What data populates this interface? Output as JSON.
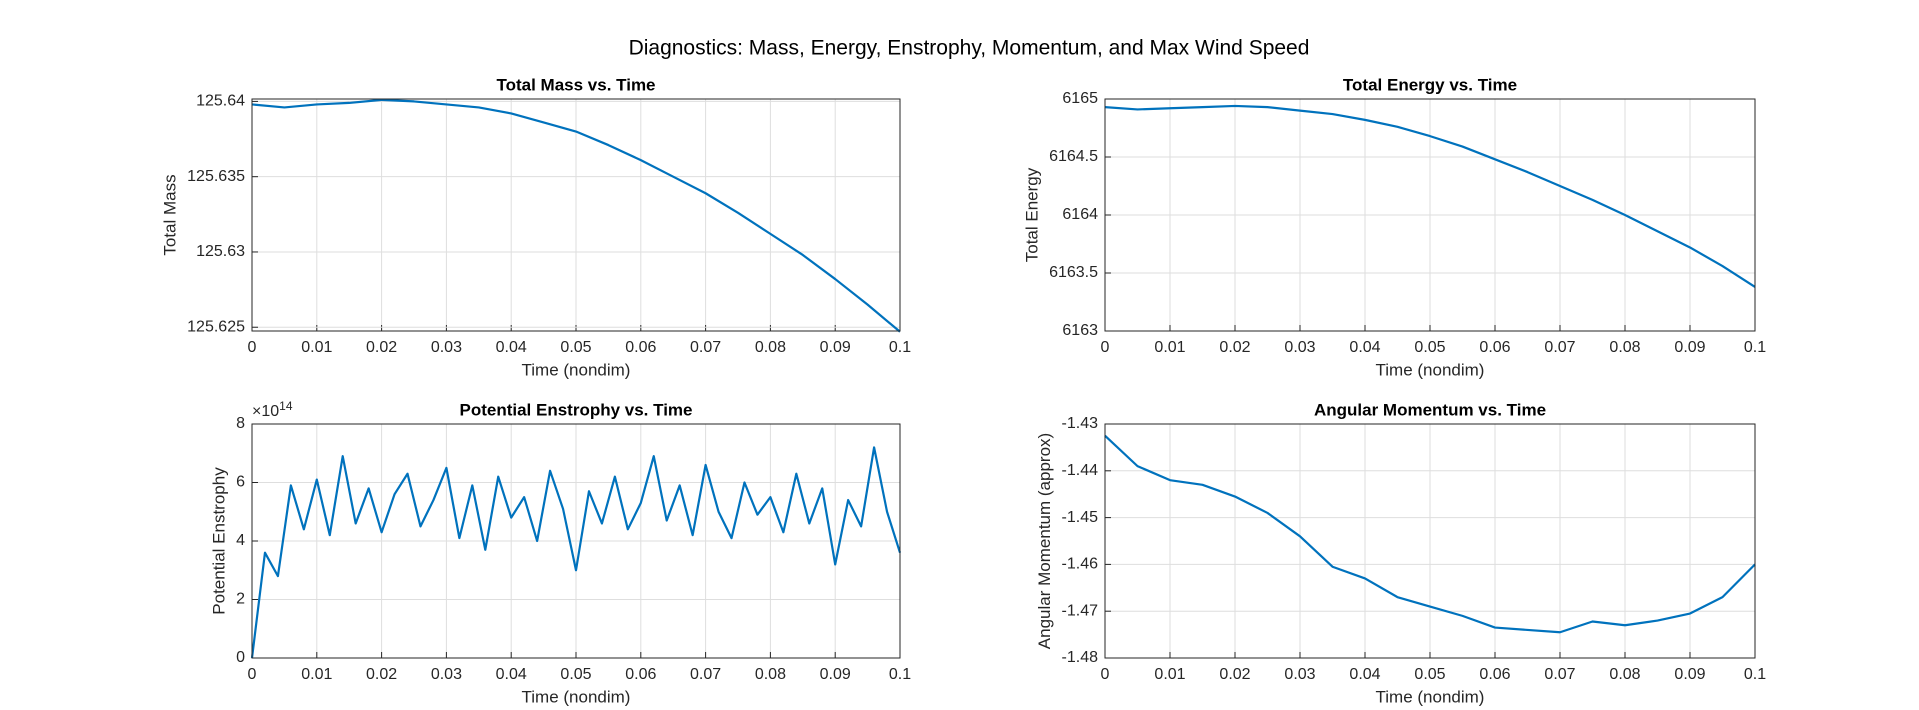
{
  "figure_title": "Diagnostics: Mass, Energy, Enstrophy, Momentum, and Max Wind Speed",
  "chart_data": [
    {
      "type": "line",
      "title": "Total Mass vs. Time",
      "xlabel": "Time (nondim)",
      "ylabel": "Total Mass",
      "color": "#0072bd",
      "grid": true,
      "x": [
        0,
        0.005,
        0.01,
        0.015,
        0.02,
        0.025,
        0.03,
        0.035,
        0.04,
        0.045,
        0.05,
        0.055,
        0.06,
        0.065,
        0.07,
        0.075,
        0.08,
        0.085,
        0.09,
        0.095,
        0.1
      ],
      "values": [
        125.6398,
        125.6396,
        125.6398,
        125.6399,
        125.6401,
        125.64,
        125.6398,
        125.6396,
        125.6392,
        125.6386,
        125.638,
        125.6371,
        125.6361,
        125.635,
        125.6339,
        125.6326,
        125.6312,
        125.6298,
        125.6282,
        125.6265,
        125.6247
      ],
      "xlim": [
        0,
        0.1
      ],
      "xticks": [
        0,
        0.01,
        0.02,
        0.03,
        0.04,
        0.05,
        0.06,
        0.07,
        0.08,
        0.09,
        0.1
      ],
      "ylim": [
        125.62475,
        125.64016
      ],
      "yticks": [
        125.625,
        125.63,
        125.635,
        125.64
      ]
    },
    {
      "type": "line",
      "title": "Total Energy vs. Time",
      "xlabel": "Time (nondim)",
      "ylabel": "Total Energy",
      "color": "#0072bd",
      "grid": true,
      "x": [
        0,
        0.005,
        0.01,
        0.015,
        0.02,
        0.025,
        0.03,
        0.035,
        0.04,
        0.045,
        0.05,
        0.055,
        0.06,
        0.065,
        0.07,
        0.075,
        0.08,
        0.085,
        0.09,
        0.095,
        0.1
      ],
      "values": [
        6164.93,
        6164.91,
        6164.92,
        6164.93,
        6164.94,
        6164.93,
        6164.9,
        6164.87,
        6164.82,
        6164.76,
        6164.68,
        6164.59,
        6164.48,
        6164.37,
        6164.25,
        6164.13,
        6164.0,
        6163.86,
        6163.72,
        6163.56,
        6163.38
      ],
      "xlim": [
        0,
        0.1
      ],
      "xticks": [
        0,
        0.01,
        0.02,
        0.03,
        0.04,
        0.05,
        0.06,
        0.07,
        0.08,
        0.09,
        0.1
      ],
      "ylim": [
        6163,
        6165
      ],
      "yticks": [
        6163,
        6163.5,
        6164,
        6164.5,
        6165
      ]
    },
    {
      "type": "line",
      "title": "Potential Enstrophy vs. Time",
      "xlabel": "Time (nondim)",
      "ylabel": "Potential Enstrophy",
      "color": "#0072bd",
      "grid": true,
      "y_scale_base": "×10",
      "y_scale_power": "14",
      "x": [
        0,
        0.002,
        0.004,
        0.006,
        0.008,
        0.01,
        0.012,
        0.014,
        0.016,
        0.018,
        0.02,
        0.022,
        0.024,
        0.026,
        0.028,
        0.03,
        0.032,
        0.034,
        0.036,
        0.038,
        0.04,
        0.042,
        0.044,
        0.046,
        0.048,
        0.05,
        0.052,
        0.054,
        0.056,
        0.058,
        0.06,
        0.062,
        0.064,
        0.066,
        0.068,
        0.07,
        0.072,
        0.074,
        0.076,
        0.078,
        0.08,
        0.082,
        0.084,
        0.086,
        0.088,
        0.09,
        0.092,
        0.094,
        0.096,
        0.098,
        0.1
      ],
      "values": [
        0,
        360000000000000.0,
        280000000000000.0,
        590000000000000.0,
        440000000000000.0,
        610000000000000.0,
        420000000000000.0,
        690000000000000.0,
        460000000000000.0,
        580000000000000.0,
        430000000000000.0,
        560000000000000.0,
        630000000000000.0,
        450000000000000.0,
        540000000000000.0,
        650000000000000.0,
        410000000000000.0,
        590000000000000.0,
        370000000000000.0,
        620000000000000.0,
        480000000000000.0,
        550000000000000.0,
        400000000000000.0,
        640000000000000.0,
        510000000000000.0,
        300000000000000.0,
        570000000000000.0,
        460000000000000.0,
        620000000000000.0,
        440000000000000.0,
        530000000000000.0,
        690000000000000.0,
        470000000000000.0,
        590000000000000.0,
        420000000000000.0,
        660000000000000.0,
        500000000000000.0,
        410000000000000.0,
        600000000000000.0,
        490000000000000.0,
        550000000000000.0,
        430000000000000.0,
        630000000000000.0,
        460000000000000.0,
        580000000000000.0,
        320000000000000.0,
        540000000000000.0,
        450000000000000.0,
        720000000000000.0,
        500000000000000.0,
        360000000000000.0
      ],
      "xlim": [
        0,
        0.1
      ],
      "xticks": [
        0,
        0.01,
        0.02,
        0.03,
        0.04,
        0.05,
        0.06,
        0.07,
        0.08,
        0.09,
        0.1
      ],
      "ylim": [
        0,
        800000000000000.0
      ],
      "yticks": [
        {
          "value": 0,
          "label": "0"
        },
        {
          "value": 200000000000000.0,
          "label": "2"
        },
        {
          "value": 400000000000000.0,
          "label": "4"
        },
        {
          "value": 600000000000000.0,
          "label": "6"
        },
        {
          "value": 800000000000000.0,
          "label": "8"
        }
      ]
    },
    {
      "type": "line",
      "title": "Angular Momentum vs. Time",
      "xlabel": "Time (nondim)",
      "ylabel": "Angular Momentum (approx)",
      "color": "#0072bd",
      "grid": true,
      "x": [
        0,
        0.005,
        0.01,
        0.015,
        0.02,
        0.025,
        0.03,
        0.035,
        0.04,
        0.045,
        0.05,
        0.055,
        0.06,
        0.065,
        0.07,
        0.075,
        0.08,
        0.085,
        0.09,
        0.095,
        0.1
      ],
      "values": [
        -1.4325,
        -1.439,
        -1.442,
        -1.443,
        -1.4455,
        -1.449,
        -1.454,
        -1.4605,
        -1.463,
        -1.467,
        -1.469,
        -1.471,
        -1.4735,
        -1.474,
        -1.4745,
        -1.4722,
        -1.473,
        -1.472,
        -1.4705,
        -1.467,
        -1.46
      ],
      "xlim": [
        0,
        0.1
      ],
      "xticks": [
        0,
        0.01,
        0.02,
        0.03,
        0.04,
        0.05,
        0.06,
        0.07,
        0.08,
        0.09,
        0.1
      ],
      "ylim": [
        -1.48,
        -1.43
      ],
      "yticks": [
        -1.48,
        -1.47,
        -1.46,
        -1.45,
        -1.44,
        -1.43
      ]
    }
  ]
}
